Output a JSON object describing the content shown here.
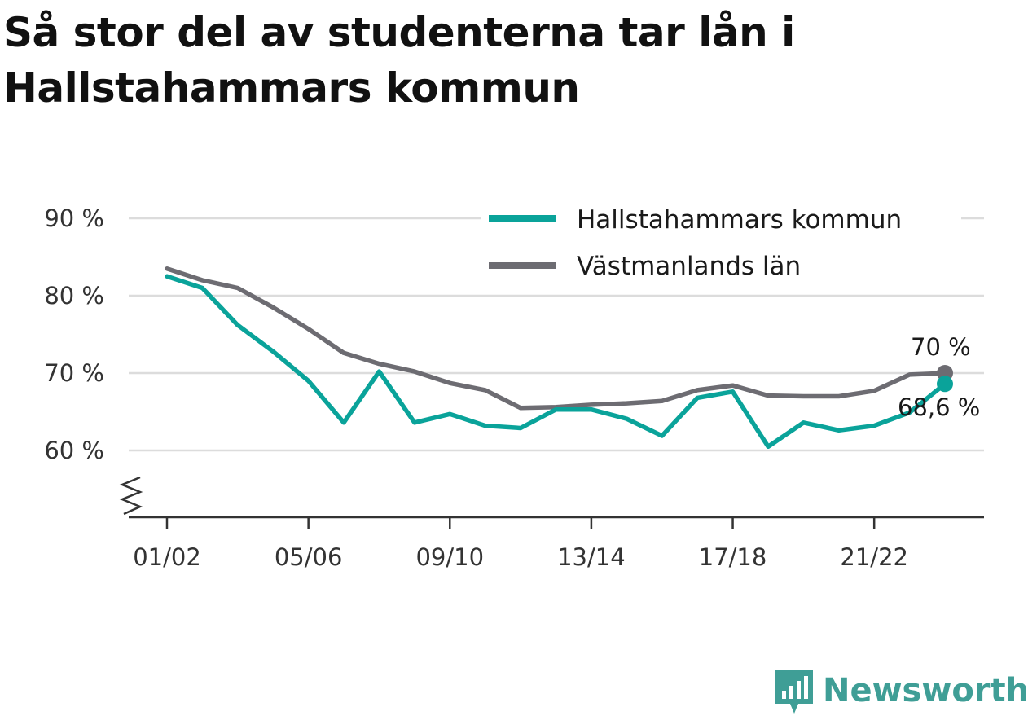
{
  "title": "Så stor del av studenterna tar lån i Hallstahammars kommun",
  "brand": {
    "name": "Newsworthy",
    "icon": "newsworthy-logo-icon",
    "color": "#3f9e96"
  },
  "chart_data": {
    "type": "line",
    "title": "Så stor del av studenterna tar lån i Hallstahammars kommun",
    "x": [
      "01/02",
      "02/03",
      "03/04",
      "04/05",
      "05/06",
      "06/07",
      "07/08",
      "08/09",
      "09/10",
      "10/11",
      "11/12",
      "12/13",
      "13/14",
      "14/15",
      "15/16",
      "16/17",
      "17/18",
      "18/19",
      "19/20",
      "20/21",
      "21/22",
      "22/23",
      "23/24"
    ],
    "x_tick_labels": [
      "01/02",
      "05/06",
      "09/10",
      "13/14",
      "17/18",
      "21/22"
    ],
    "y_tick_labels": [
      "60 %",
      "70 %",
      "80 %",
      "90 %"
    ],
    "y_ticks": [
      60,
      70,
      80,
      90
    ],
    "ylim": [
      51,
      91
    ],
    "y_axis_break": true,
    "grid": true,
    "legend_position": "top-right",
    "series": [
      {
        "name": "Hallstahammars kommun",
        "color": "#0aa39a",
        "values": [
          82.5,
          81.0,
          76.2,
          72.8,
          69.0,
          63.6,
          70.2,
          63.6,
          64.7,
          63.2,
          62.9,
          65.3,
          65.3,
          64.1,
          61.9,
          66.8,
          67.6,
          60.5,
          63.6,
          62.6,
          63.2,
          64.9,
          68.6
        ],
        "end_label": "68,6 %"
      },
      {
        "name": "Västmanlands län",
        "color": "#6d6c72",
        "values": [
          83.5,
          82.0,
          81.0,
          78.5,
          75.7,
          72.6,
          71.2,
          70.2,
          68.7,
          67.8,
          65.5,
          65.6,
          65.9,
          66.1,
          66.4,
          67.8,
          68.4,
          67.1,
          67.0,
          67.0,
          67.7,
          69.8,
          70.0
        ],
        "end_label": "70 %"
      }
    ]
  }
}
